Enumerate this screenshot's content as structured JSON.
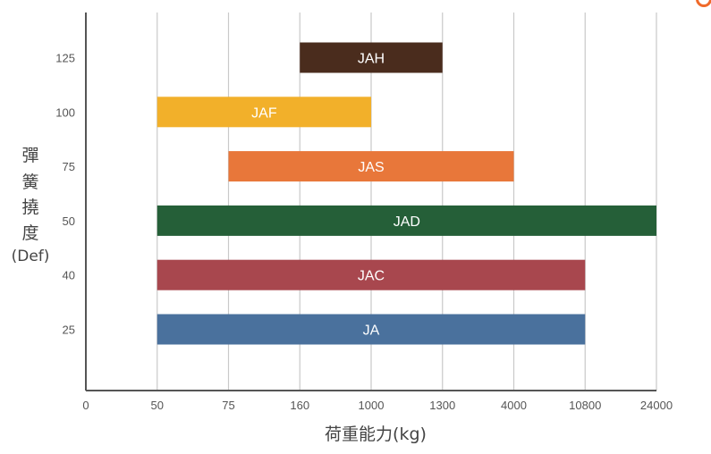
{
  "chart_data": {
    "type": "bar",
    "orientation": "horizontal-range",
    "title": "",
    "xlabel": "荷重能力(kg)",
    "ylabel_vertical": [
      "彈",
      "簧",
      "撓",
      "度"
    ],
    "ylabel_unit": "(Def)",
    "x_ticks": [
      "0",
      "50",
      "75",
      "160",
      "1000",
      "1300",
      "4000",
      "10800",
      "24000"
    ],
    "y_ticks": [
      "125",
      "100",
      "75",
      "50",
      "40",
      "25"
    ],
    "grid": "vertical",
    "series": [
      {
        "name": "JAH",
        "deflection": "125",
        "load_from": "160",
        "load_to": "1300",
        "color": "#4a2c1d"
      },
      {
        "name": "JAF",
        "deflection": "100",
        "load_from": "50",
        "load_to": "1000",
        "color": "#f2b02a"
      },
      {
        "name": "JAS",
        "deflection": "75",
        "load_from": "75",
        "load_to": "4000",
        "color": "#e8773a"
      },
      {
        "name": "JAD",
        "deflection": "50",
        "load_from": "50",
        "load_to": "24000",
        "color": "#255f38"
      },
      {
        "name": "JAC",
        "deflection": "40",
        "load_from": "50",
        "load_to": "10800",
        "color": "#a8474e"
      },
      {
        "name": "JA",
        "deflection": "25",
        "load_from": "50",
        "load_to": "10800",
        "color": "#4a719d"
      }
    ]
  }
}
